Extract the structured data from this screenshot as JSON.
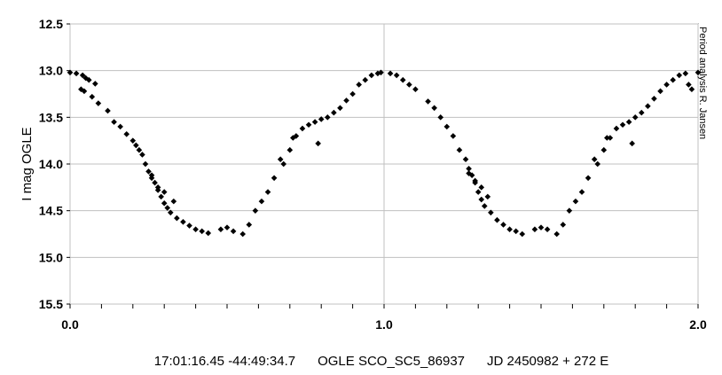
{
  "chart_data": {
    "type": "scatter",
    "title": "",
    "xlabel": "",
    "ylabel": "I mag OGLE",
    "side_note": "Period analysis  R. Jansen",
    "caption": "17:01:16.45 -44:49:34.7      OGLE SCO_SC5_86937      JD 2450982 + 272 E",
    "xlim": [
      0.0,
      2.0
    ],
    "ylim": [
      15.5,
      12.5
    ],
    "y_inverted": true,
    "x_ticks": [
      "0.0",
      "1.0",
      "2.0"
    ],
    "y_ticks": [
      "12.5",
      "13.0",
      "13.5",
      "14.0",
      "14.5",
      "15.0",
      "15.5"
    ],
    "grid": true,
    "marker_color": "#000000",
    "series": [
      {
        "x": [
          0.0,
          0.02,
          0.04,
          0.05,
          0.06,
          0.08,
          0.035,
          0.045,
          0.07,
          0.09,
          0.12,
          0.14,
          0.16,
          0.18,
          0.2,
          0.21,
          0.22,
          0.23,
          0.24,
          0.25,
          0.26,
          0.27,
          0.28,
          0.29,
          0.3,
          0.31,
          0.32,
          0.34,
          0.36,
          0.38,
          0.4,
          0.42,
          0.44,
          0.48,
          0.5,
          0.52,
          0.55,
          0.57,
          0.59,
          0.61,
          0.63,
          0.65,
          0.68,
          0.7,
          0.72,
          0.74,
          0.76,
          0.78,
          0.8,
          0.82,
          0.84,
          0.86,
          0.88,
          0.9,
          0.92,
          0.94,
          0.96,
          0.98,
          0.99,
          1.02,
          1.04,
          1.06,
          1.08,
          1.1,
          1.14,
          1.16,
          1.18,
          1.2,
          1.22,
          1.24,
          1.26,
          1.27,
          1.28,
          1.29,
          1.3,
          1.31,
          1.32,
          1.34,
          1.36,
          1.38,
          1.4,
          1.42,
          1.44,
          1.48,
          1.5,
          1.52,
          1.55,
          1.57,
          1.59,
          1.61,
          1.63,
          1.65,
          1.68,
          1.7,
          1.72,
          1.74,
          1.76,
          1.78,
          1.8,
          1.82,
          1.84,
          1.86,
          1.88,
          1.9,
          1.92,
          1.94,
          1.96,
          1.97,
          1.98,
          2.0,
          0.26,
          0.28,
          0.3,
          0.33,
          1.27,
          1.29,
          1.31,
          1.33,
          0.67,
          0.71,
          0.79,
          1.67,
          1.71,
          1.79
        ],
        "y": [
          13.02,
          13.03,
          13.05,
          13.08,
          13.1,
          13.14,
          13.2,
          13.22,
          13.28,
          13.35,
          13.43,
          13.55,
          13.6,
          13.68,
          13.75,
          13.8,
          13.85,
          13.9,
          14.0,
          14.08,
          14.15,
          14.2,
          14.28,
          14.35,
          14.42,
          14.47,
          14.52,
          14.58,
          14.62,
          14.66,
          14.7,
          14.72,
          14.74,
          14.7,
          14.68,
          14.72,
          14.75,
          14.65,
          14.5,
          14.4,
          14.3,
          14.15,
          14.0,
          13.85,
          13.7,
          13.62,
          13.58,
          13.55,
          13.52,
          13.5,
          13.45,
          13.4,
          13.32,
          13.25,
          13.15,
          13.1,
          13.05,
          13.03,
          13.02,
          13.03,
          13.05,
          13.1,
          13.15,
          13.2,
          13.33,
          13.4,
          13.5,
          13.6,
          13.7,
          13.85,
          13.95,
          14.05,
          14.12,
          14.2,
          14.3,
          14.38,
          14.45,
          14.52,
          14.6,
          14.65,
          14.7,
          14.72,
          14.75,
          14.7,
          14.68,
          14.7,
          14.75,
          14.65,
          14.5,
          14.4,
          14.3,
          14.15,
          14.0,
          13.85,
          13.72,
          13.62,
          13.58,
          13.55,
          13.5,
          13.45,
          13.38,
          13.3,
          13.22,
          13.15,
          13.1,
          13.05,
          13.03,
          13.15,
          13.2,
          13.02,
          14.12,
          14.25,
          14.3,
          14.4,
          14.1,
          14.18,
          14.25,
          14.35,
          13.95,
          13.72,
          13.78,
          13.95,
          13.72,
          13.78
        ]
      }
    ]
  }
}
